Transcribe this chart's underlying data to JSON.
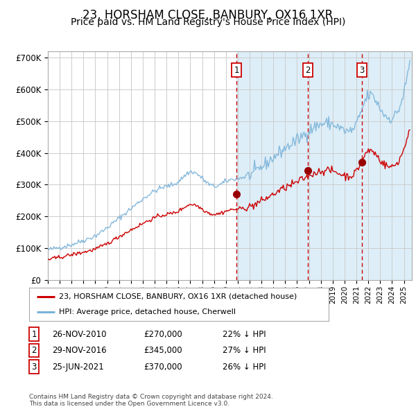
{
  "title": "23, HORSHAM CLOSE, BANBURY, OX16 1XR",
  "subtitle": "Price paid vs. HM Land Registry's House Price Index (HPI)",
  "title_fontsize": 12,
  "subtitle_fontsize": 10,
  "ylim": [
    0,
    720000
  ],
  "yticks": [
    0,
    100000,
    200000,
    300000,
    400000,
    500000,
    600000,
    700000
  ],
  "ytick_labels": [
    "£0",
    "£100K",
    "£200K",
    "£300K",
    "£400K",
    "£500K",
    "£600K",
    "£700K"
  ],
  "background_color": "#ffffff",
  "plot_bg_color": "#ffffff",
  "hpi_color": "#7ab3d9",
  "price_color": "#cc0000",
  "grid_color": "#cccccc",
  "sale_dates": [
    "2010-11-26",
    "2016-11-29",
    "2021-06-25"
  ],
  "sale_prices": [
    270000,
    345000,
    370000
  ],
  "sale_labels": [
    "1",
    "2",
    "3"
  ],
  "legend_price_label": "23, HORSHAM CLOSE, BANBURY, OX16 1XR (detached house)",
  "legend_hpi_label": "HPI: Average price, detached house, Cherwell",
  "table_data": [
    [
      "1",
      "26-NOV-2010",
      "£270,000",
      "22% ↓ HPI"
    ],
    [
      "2",
      "29-NOV-2016",
      "£345,000",
      "27% ↓ HPI"
    ],
    [
      "3",
      "25-JUN-2021",
      "£370,000",
      "26% ↓ HPI"
    ]
  ],
  "footnote": "Contains HM Land Registry data © Crown copyright and database right 2024.\nThis data is licensed under the Open Government Licence v3.0.",
  "shade_color": "#ddeef8",
  "hpi_key_years": [
    1995,
    1996,
    1997,
    1998,
    1999,
    2000,
    2001,
    2002,
    2003,
    2004,
    2005,
    2006,
    2007,
    2008,
    2009,
    2010,
    2011,
    2012,
    2013,
    2014,
    2015,
    2016,
    2017,
    2018,
    2019,
    2020,
    2021,
    2022,
    2023,
    2024,
    2025
  ],
  "hpi_key_vals": [
    95000,
    103000,
    112000,
    125000,
    140000,
    165000,
    195000,
    225000,
    255000,
    280000,
    295000,
    310000,
    340000,
    320000,
    295000,
    310000,
    320000,
    330000,
    355000,
    385000,
    415000,
    440000,
    470000,
    490000,
    490000,
    470000,
    490000,
    580000,
    540000,
    510000,
    590000
  ],
  "price_key_years": [
    1995,
    1996,
    1997,
    1998,
    1999,
    2000,
    2001,
    2002,
    2003,
    2004,
    2005,
    2006,
    2007,
    2008,
    2009,
    2010,
    2011,
    2012,
    2013,
    2014,
    2015,
    2016,
    2017,
    2018,
    2019,
    2020,
    2021,
    2022,
    2023,
    2024,
    2025
  ],
  "price_key_vals": [
    65000,
    72000,
    80000,
    88000,
    98000,
    115000,
    137000,
    158000,
    178000,
    196000,
    207000,
    217000,
    238000,
    224000,
    207000,
    217000,
    224000,
    231000,
    249000,
    270000,
    291000,
    308000,
    329000,
    343000,
    343000,
    329000,
    343000,
    406000,
    378000,
    357000,
    413000
  ]
}
